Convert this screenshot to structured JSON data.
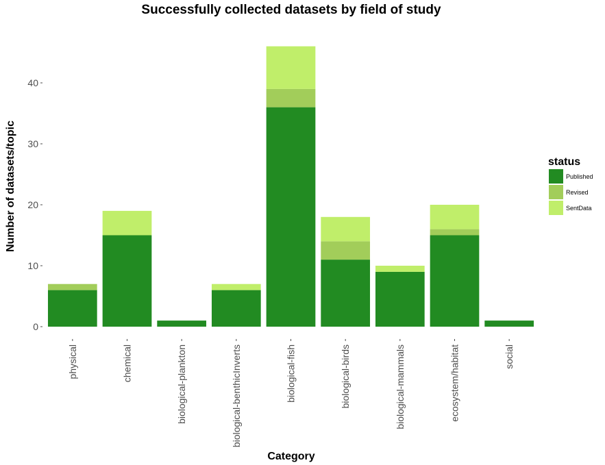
{
  "chart_data": {
    "type": "bar",
    "stacked": true,
    "title": "Successfully collected datasets by field of study",
    "xlabel": "Category",
    "ylabel": "Number of datasets/topic",
    "ylim": [
      0,
      48
    ],
    "yticks": [
      0,
      10,
      20,
      30,
      40
    ],
    "grid": false,
    "legend_position": "right",
    "legend_title": "status",
    "categories": [
      "physical",
      "chemical",
      "biological-plankton",
      "biological-benthicInverts",
      "biological-fish",
      "biological-birds",
      "biological-mammals",
      "ecosystem/habitat",
      "social"
    ],
    "series": [
      {
        "name": "Published",
        "color": "#228B22",
        "values": [
          6,
          15,
          1,
          6,
          36,
          11,
          9,
          15,
          1
        ]
      },
      {
        "name": "Revised",
        "color": "#A2CD5A",
        "values": [
          1,
          0,
          0,
          0,
          3,
          3,
          0,
          1,
          0
        ]
      },
      {
        "name": "SentData",
        "color": "#C0EE6A",
        "values": [
          0,
          4,
          0,
          1,
          7,
          4,
          1,
          4,
          0
        ]
      }
    ]
  }
}
